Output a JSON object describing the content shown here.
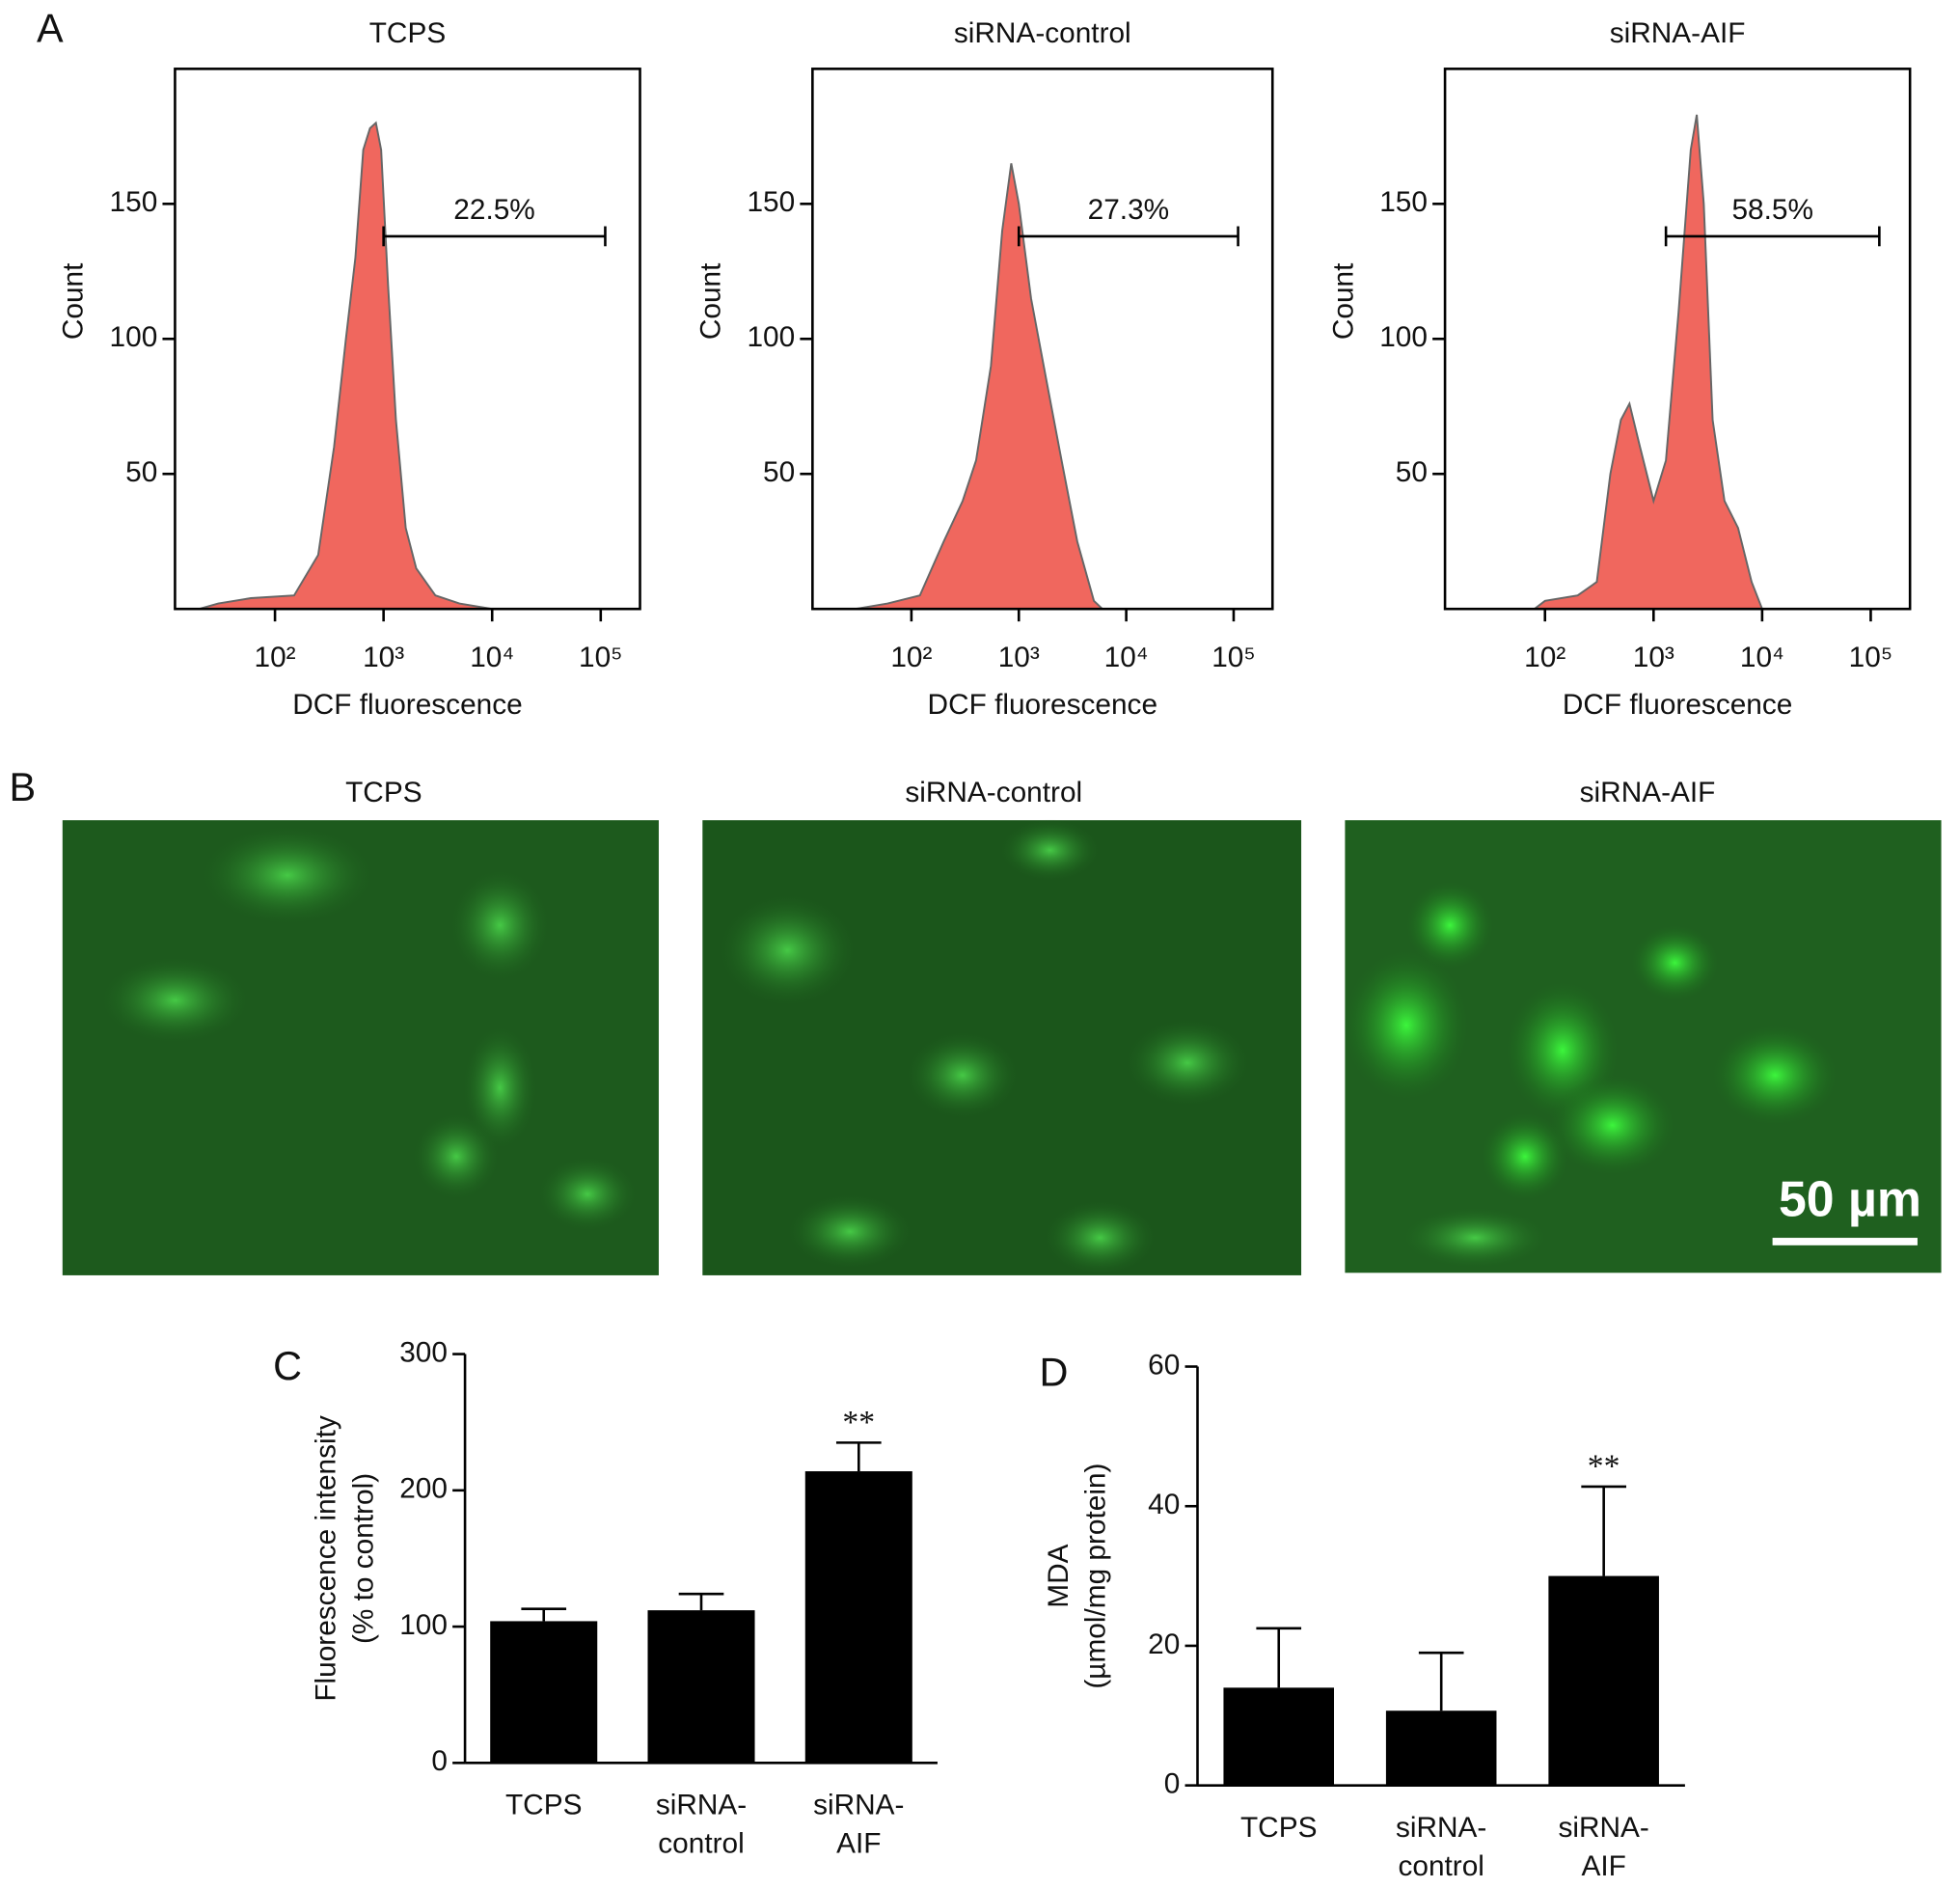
{
  "panel_labels": [
    "A",
    "B",
    "C",
    "D"
  ],
  "micrographs": {
    "titles": [
      "TCPS",
      "siRNA-control",
      "siRNA-AIF"
    ],
    "scale_bar": "50 µm"
  },
  "chart_data": [
    {
      "type": "area",
      "title": "TCPS",
      "xlabel": "DCF fluorescence",
      "ylabel": "Count",
      "xscale": "log",
      "color": "#f0675e",
      "line_color": "#666666",
      "x": [
        20,
        30,
        60,
        150,
        250,
        350,
        450,
        550,
        650,
        750,
        850,
        950,
        1100,
        1300,
        1600,
        2000,
        3000,
        5000,
        10000
      ],
      "values": [
        0,
        2,
        4,
        5,
        20,
        60,
        100,
        130,
        170,
        178,
        180,
        170,
        120,
        70,
        30,
        15,
        5,
        2,
        0
      ],
      "xlim": [
        12,
        230000
      ],
      "ylim": [
        0,
        200
      ],
      "xticks": [
        {
          "value": 100,
          "label": "10²"
        },
        {
          "value": 1000,
          "label": "10³"
        },
        {
          "value": 10000,
          "label": "10⁴"
        },
        {
          "value": 100000,
          "label": "10⁵"
        }
      ],
      "yticks": [
        50,
        100,
        150
      ],
      "annotations": [
        {
          "text": "22.5%",
          "x": [
            1000,
            110000
          ],
          "y": 138
        }
      ]
    },
    {
      "type": "area",
      "title": "siRNA-control",
      "xlabel": "DCF fluorescence",
      "ylabel": "Count",
      "xscale": "log",
      "color": "#f0675e",
      "line_color": "#666666",
      "x": [
        30,
        60,
        120,
        200,
        300,
        400,
        550,
        700,
        850,
        1000,
        1300,
        1800,
        2500,
        3500,
        5000,
        6000
      ],
      "values": [
        0,
        2,
        5,
        25,
        40,
        55,
        90,
        140,
        165,
        150,
        115,
        85,
        55,
        25,
        3,
        0
      ],
      "xlim": [
        12,
        230000
      ],
      "ylim": [
        0,
        200
      ],
      "xticks": [
        {
          "value": 100,
          "label": "10²"
        },
        {
          "value": 1000,
          "label": "10³"
        },
        {
          "value": 10000,
          "label": "10⁴"
        },
        {
          "value": 100000,
          "label": "10⁵"
        }
      ],
      "yticks": [
        50,
        100,
        150
      ],
      "annotations": [
        {
          "text": "27.3%",
          "x": [
            1000,
            110000
          ],
          "y": 138
        }
      ]
    },
    {
      "type": "area",
      "title": "siRNA-AIF",
      "xlabel": "DCF fluorescence",
      "ylabel": "Count",
      "xscale": "log",
      "color": "#f0675e",
      "line_color": "#666666",
      "x": [
        80,
        100,
        200,
        300,
        400,
        500,
        600,
        750,
        1000,
        1300,
        1700,
        2200,
        2500,
        2900,
        3500,
        4500,
        6000,
        8000,
        10000
      ],
      "values": [
        0,
        3,
        5,
        10,
        50,
        70,
        76,
        60,
        40,
        55,
        110,
        170,
        183,
        150,
        70,
        40,
        30,
        10,
        0
      ],
      "xlim": [
        12,
        230000
      ],
      "ylim": [
        0,
        200
      ],
      "xticks": [
        {
          "value": 100,
          "label": "10²"
        },
        {
          "value": 1000,
          "label": "10³"
        },
        {
          "value": 10000,
          "label": "10⁴"
        },
        {
          "value": 100000,
          "label": "10⁵"
        }
      ],
      "yticks": [
        50,
        100,
        150
      ],
      "annotations": [
        {
          "text": "58.5%",
          "x": [
            1300,
            120000
          ],
          "y": 138
        }
      ]
    },
    {
      "type": "bar",
      "ylabel": [
        "Fluorescence intensity",
        "(% to control)"
      ],
      "color": "#000000",
      "categories": [
        [
          "TCPS"
        ],
        [
          "siRNA-",
          "control"
        ],
        [
          "siRNA-",
          "AIF"
        ]
      ],
      "values": [
        104,
        112,
        214
      ],
      "errors": [
        9,
        12,
        21
      ],
      "ylim": [
        0,
        300
      ],
      "yticks": [
        0,
        100,
        200,
        300
      ],
      "annotations": [
        {
          "text": "**",
          "category": 2
        }
      ]
    },
    {
      "type": "bar",
      "ylabel": [
        "MDA",
        "(µmol/mg protein)"
      ],
      "color": "#000000",
      "categories": [
        [
          "TCPS"
        ],
        [
          "siRNA-",
          "control"
        ],
        [
          "siRNA-",
          "AIF"
        ]
      ],
      "values": [
        14,
        10.7,
        30
      ],
      "errors": [
        8.5,
        8.3,
        12.8
      ],
      "ylim": [
        0,
        60
      ],
      "yticks": [
        0,
        20,
        40,
        60
      ],
      "annotations": [
        {
          "text": "**",
          "category": 2
        }
      ]
    }
  ]
}
